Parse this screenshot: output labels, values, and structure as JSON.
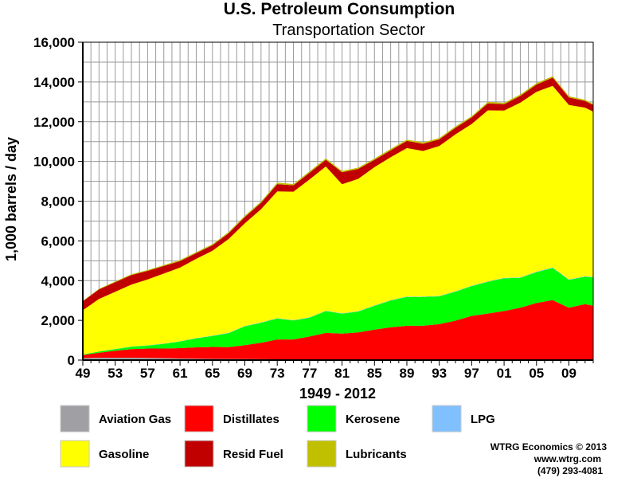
{
  "chart_data": {
    "type": "area",
    "stacked": true,
    "title": "U.S. Petroleum Consumption",
    "subtitle": "Transportation Sector",
    "xlabel": "1949 - 2012",
    "ylabel": "1,000 barrels / day",
    "ylim": [
      0,
      16000
    ],
    "xlim": [
      1949,
      2012
    ],
    "yticks": [
      0,
      2000,
      4000,
      6000,
      8000,
      10000,
      12000,
      14000,
      16000
    ],
    "ytick_labels": [
      "0",
      "2,000",
      "4,000",
      "6,000",
      "8,000",
      "10,000",
      "12,000",
      "14,000",
      "16,000"
    ],
    "xticks": [
      1949,
      1953,
      1957,
      1961,
      1965,
      1969,
      1973,
      1977,
      1981,
      1985,
      1989,
      1993,
      1997,
      2001,
      2005,
      2009
    ],
    "xtick_labels": [
      "49",
      "53",
      "57",
      "61",
      "65",
      "69",
      "73",
      "77",
      "81",
      "85",
      "89",
      "93",
      "97",
      "01",
      "05",
      "09"
    ],
    "grid": true,
    "legend_position": "bottom",
    "anchor_years": [
      1949,
      1951,
      1953,
      1955,
      1957,
      1959,
      1961,
      1963,
      1965,
      1967,
      1969,
      1971,
      1973,
      1975,
      1977,
      1979,
      1981,
      1983,
      1985,
      1987,
      1989,
      1991,
      1993,
      1995,
      1997,
      1999,
      2001,
      2003,
      2005,
      2007,
      2009,
      2011,
      2012
    ],
    "series": [
      {
        "name": "Aviation Gas",
        "color": "#a0a0a4",
        "values": [
          100,
          120,
          120,
          120,
          110,
          100,
          80,
          70,
          60,
          55,
          50,
          45,
          40,
          38,
          37,
          36,
          35,
          33,
          32,
          30,
          30,
          28,
          27,
          25,
          24,
          22,
          20,
          18,
          17,
          16,
          15,
          14,
          14
        ]
      },
      {
        "name": "Distillates",
        "color": "#ff0000",
        "values": [
          150,
          250,
          350,
          430,
          470,
          480,
          520,
          570,
          600,
          600,
          700,
          830,
          1000,
          1000,
          1150,
          1330,
          1300,
          1360,
          1500,
          1620,
          1700,
          1700,
          1780,
          1960,
          2200,
          2320,
          2450,
          2620,
          2860,
          3000,
          2620,
          2800,
          2720
        ]
      },
      {
        "name": "Kerosene",
        "color": "#00ff00",
        "values": [
          30,
          60,
          80,
          120,
          150,
          240,
          330,
          450,
          550,
          700,
          950,
          1000,
          1050,
          950,
          950,
          1100,
          1000,
          1050,
          1200,
          1350,
          1450,
          1450,
          1400,
          1460,
          1500,
          1600,
          1650,
          1500,
          1550,
          1620,
          1400,
          1380,
          1430
        ]
      },
      {
        "name": "LPG",
        "color": "#80c0ff",
        "values": [
          5,
          5,
          10,
          10,
          10,
          15,
          15,
          15,
          20,
          20,
          20,
          20,
          20,
          20,
          20,
          20,
          20,
          20,
          20,
          20,
          20,
          20,
          20,
          20,
          20,
          20,
          20,
          20,
          25,
          25,
          25,
          25,
          25
        ]
      },
      {
        "name": "Gasoline",
        "color": "#ffff00",
        "values": [
          2220,
          2640,
          2880,
          3120,
          3320,
          3520,
          3710,
          3990,
          4270,
          4720,
          5170,
          5700,
          6380,
          6470,
          6940,
          7260,
          6500,
          6660,
          6960,
          7190,
          7470,
          7330,
          7550,
          7900,
          8140,
          8610,
          8420,
          8800,
          9050,
          9140,
          8780,
          8490,
          8320
        ]
      },
      {
        "name": "Resid Fuel",
        "color": "#c00000",
        "values": [
          450,
          480,
          480,
          480,
          430,
          380,
          330,
          290,
          280,
          290,
          310,
          320,
          370,
          320,
          340,
          340,
          600,
          500,
          370,
          350,
          360,
          360,
          330,
          330,
          330,
          350,
          320,
          340,
          370,
          420,
          380,
          330,
          330
        ]
      },
      {
        "name": "Lubricants",
        "color": "#c0c000",
        "values": [
          30,
          35,
          40,
          40,
          45,
          45,
          50,
          50,
          55,
          60,
          65,
          65,
          70,
          65,
          70,
          70,
          65,
          65,
          65,
          70,
          70,
          70,
          70,
          70,
          70,
          75,
          70,
          70,
          70,
          70,
          60,
          60,
          60
        ]
      }
    ]
  },
  "legend": {
    "items": [
      {
        "name": "Aviation Gas",
        "color": "#a0a0a4"
      },
      {
        "name": "Distillates",
        "color": "#ff0000"
      },
      {
        "name": "Kerosene",
        "color": "#00ff00"
      },
      {
        "name": "LPG",
        "color": "#80c0ff"
      },
      {
        "name": "Gasoline",
        "color": "#ffff00"
      },
      {
        "name": "Resid Fuel",
        "color": "#c00000"
      },
      {
        "name": "Lubricants",
        "color": "#c0c000"
      }
    ]
  },
  "credit": {
    "line1": "WTRG Economics © 2013",
    "line2": "www.wtrg.com",
    "line3": "(479) 293-4081"
  }
}
